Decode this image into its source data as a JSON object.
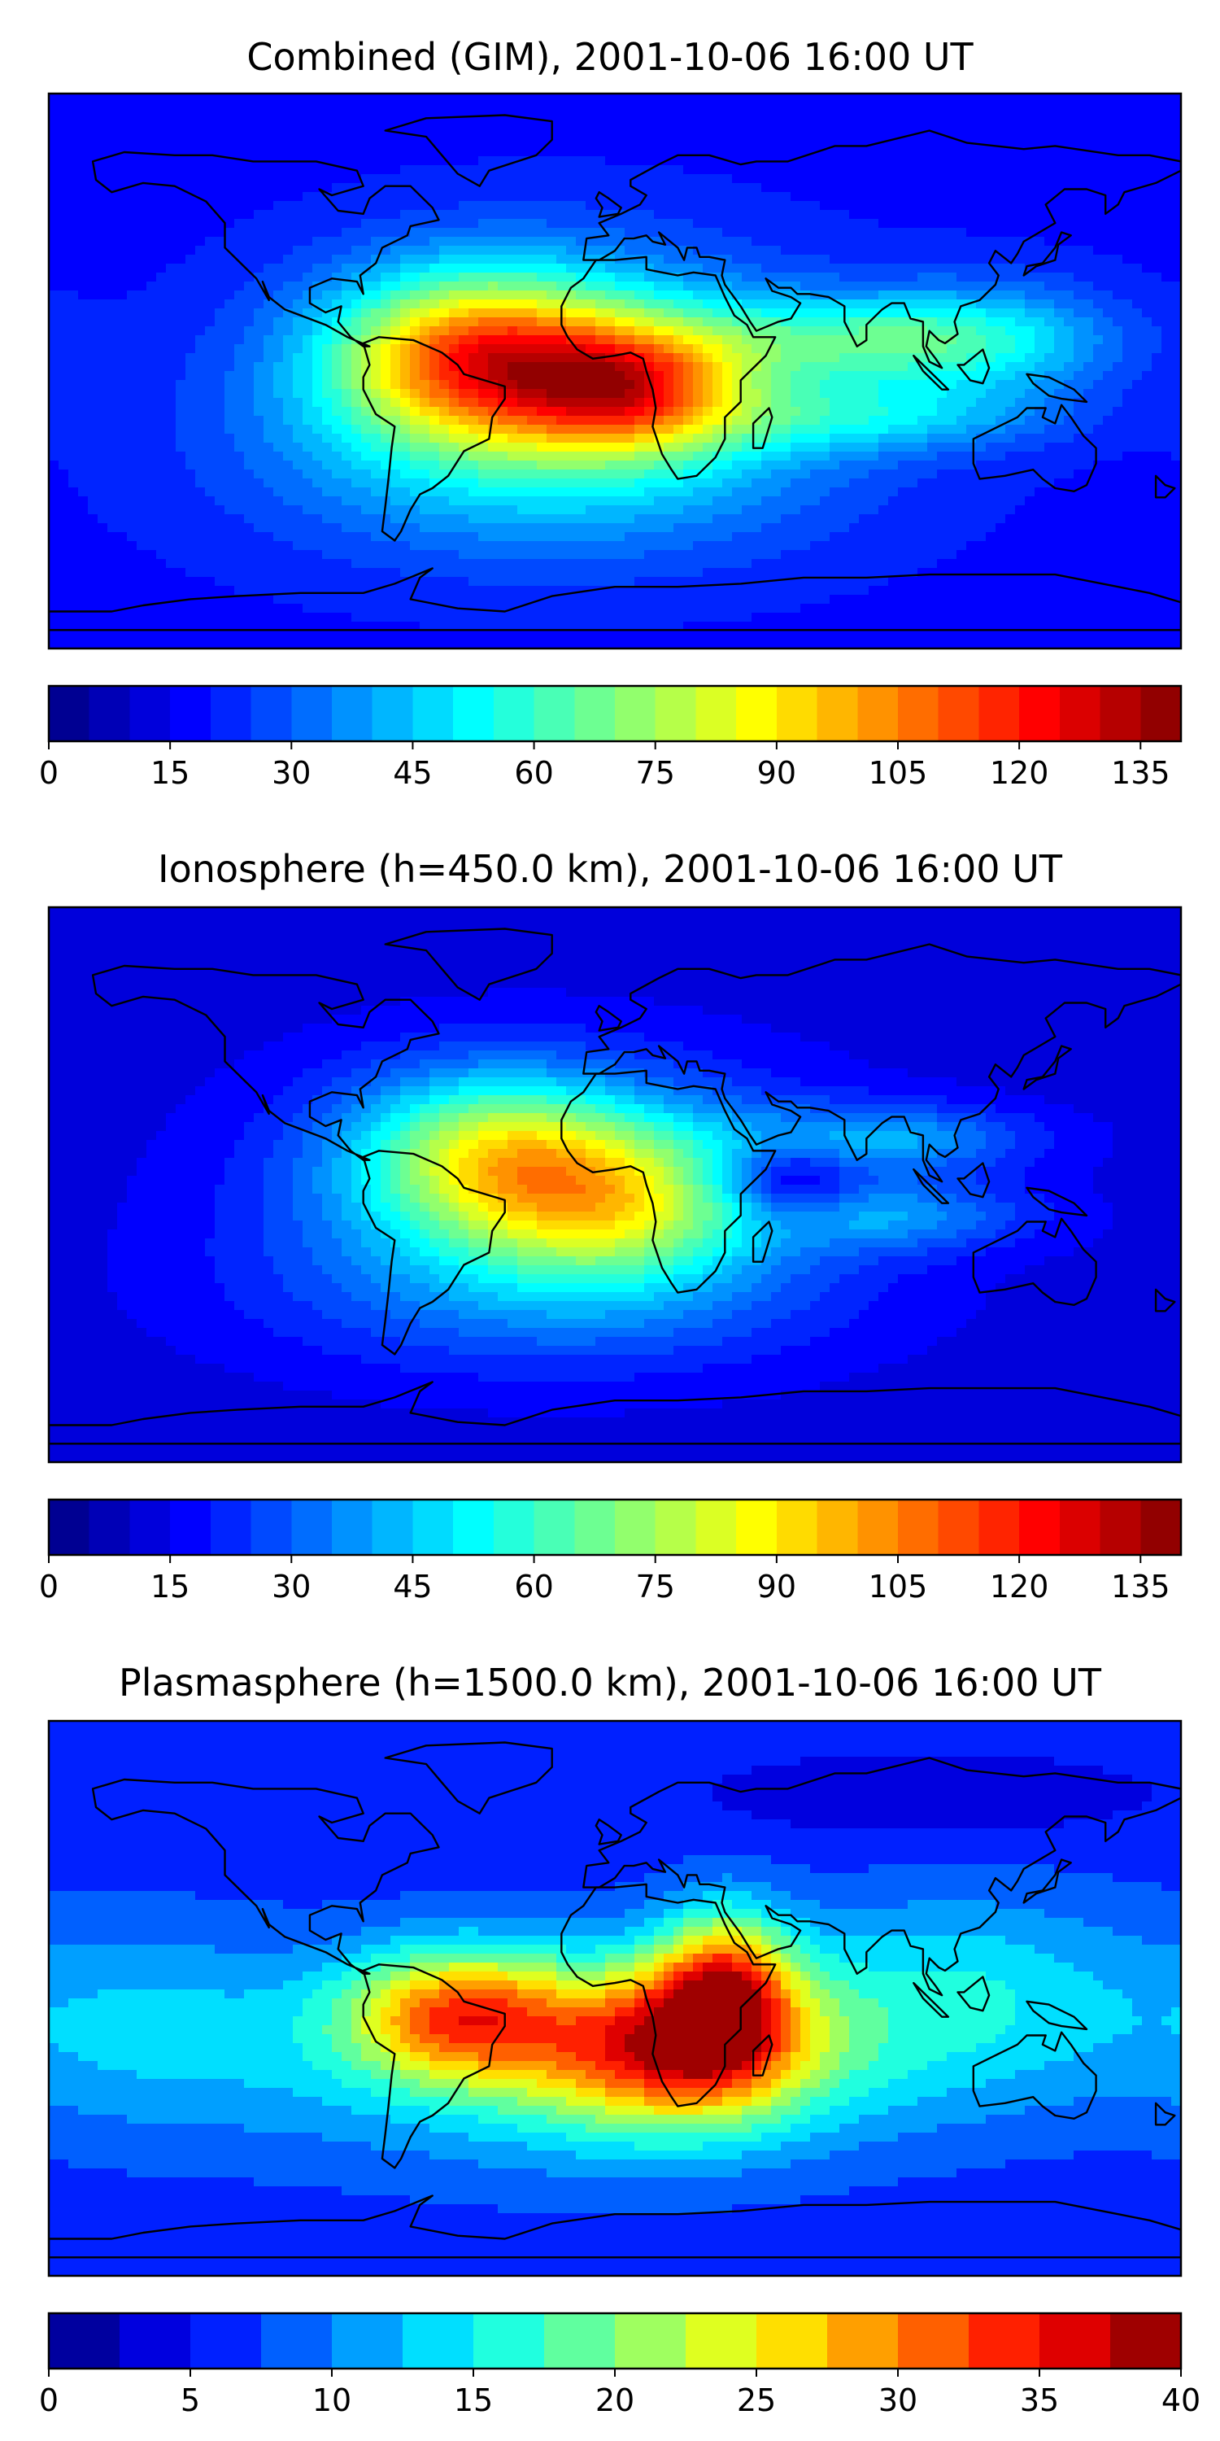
{
  "panels": [
    {
      "title": "Combined (GIM), 2001-10-06 16:00 UT",
      "colorbar": {
        "vmin": 0,
        "vmax": 140,
        "levels": 28,
        "ticks": [
          "0",
          "15",
          "30",
          "45",
          "60",
          "75",
          "90",
          "105",
          "120",
          "135"
        ]
      },
      "field": {
        "base": 18,
        "blobs": [
          {
            "lon": -45,
            "lat": 5,
            "amp": 60,
            "slon": 30,
            "slat": 18
          },
          {
            "lon": 5,
            "lat": -5,
            "amp": 55,
            "slon": 25,
            "slat": 14
          },
          {
            "lon": -20,
            "lat": 0,
            "amp": 40,
            "slon": 55,
            "slat": 28
          },
          {
            "lon": 80,
            "lat": 10,
            "amp": 32,
            "slon": 40,
            "slat": 10
          },
          {
            "lon": 80,
            "lat": -15,
            "amp": 22,
            "slon": 40,
            "slat": 8
          },
          {
            "lon": -20,
            "lat": -30,
            "amp": 18,
            "slon": 70,
            "slat": 25
          },
          {
            "lon": 120,
            "lat": 10,
            "amp": 20,
            "slon": 30,
            "slat": 15
          }
        ]
      }
    },
    {
      "title": "Ionosphere  (h=450.0 km), 2001-10-06 16:00 UT",
      "colorbar": {
        "vmin": 0,
        "vmax": 140,
        "levels": 28,
        "ticks": [
          "0",
          "15",
          "30",
          "45",
          "60",
          "75",
          "90",
          "105",
          "120",
          "135"
        ]
      },
      "field": {
        "base": 12,
        "blobs": [
          {
            "lon": -40,
            "lat": 10,
            "amp": 45,
            "slon": 30,
            "slat": 18
          },
          {
            "lon": 0,
            "lat": -5,
            "amp": 40,
            "slon": 30,
            "slat": 18
          },
          {
            "lon": -20,
            "lat": 0,
            "amp": 30,
            "slon": 60,
            "slat": 28
          },
          {
            "lon": 85,
            "lat": 15,
            "amp": 25,
            "slon": 35,
            "slat": 8
          },
          {
            "lon": 85,
            "lat": -10,
            "amp": 22,
            "slon": 35,
            "slat": 8
          },
          {
            "lon": 55,
            "lat": 0,
            "amp": -25,
            "slon": 15,
            "slat": 10
          },
          {
            "lon": -20,
            "lat": -35,
            "amp": 15,
            "slon": 70,
            "slat": 20
          }
        ]
      }
    },
    {
      "title": "Plasmasphere (h=1500.0 km), 2001-10-06 16:00 UT",
      "colorbar": {
        "vmin": 0,
        "vmax": 40,
        "levels": 16,
        "ticks": [
          "0",
          "5",
          "10",
          "15",
          "20",
          "25",
          "30",
          "35",
          "40"
        ]
      },
      "field": {
        "base": 6,
        "blobs": [
          {
            "lon": -50,
            "lat": -5,
            "amp": 20,
            "slon": 25,
            "slat": 15
          },
          {
            "lon": 20,
            "lat": -15,
            "amp": 22,
            "slon": 30,
            "slat": 18
          },
          {
            "lon": 35,
            "lat": 5,
            "amp": 18,
            "slon": 15,
            "slat": 18
          },
          {
            "lon": -10,
            "lat": -20,
            "amp": 10,
            "slon": 70,
            "slat": 25
          },
          {
            "lon": 110,
            "lat": 0,
            "amp": 8,
            "slon": 40,
            "slat": 25
          },
          {
            "lon": -150,
            "lat": -10,
            "amp": 6,
            "slon": 40,
            "slat": 25
          },
          {
            "lon": 100,
            "lat": 65,
            "amp": -3,
            "slon": 50,
            "slat": 10
          }
        ]
      }
    }
  ]
}
